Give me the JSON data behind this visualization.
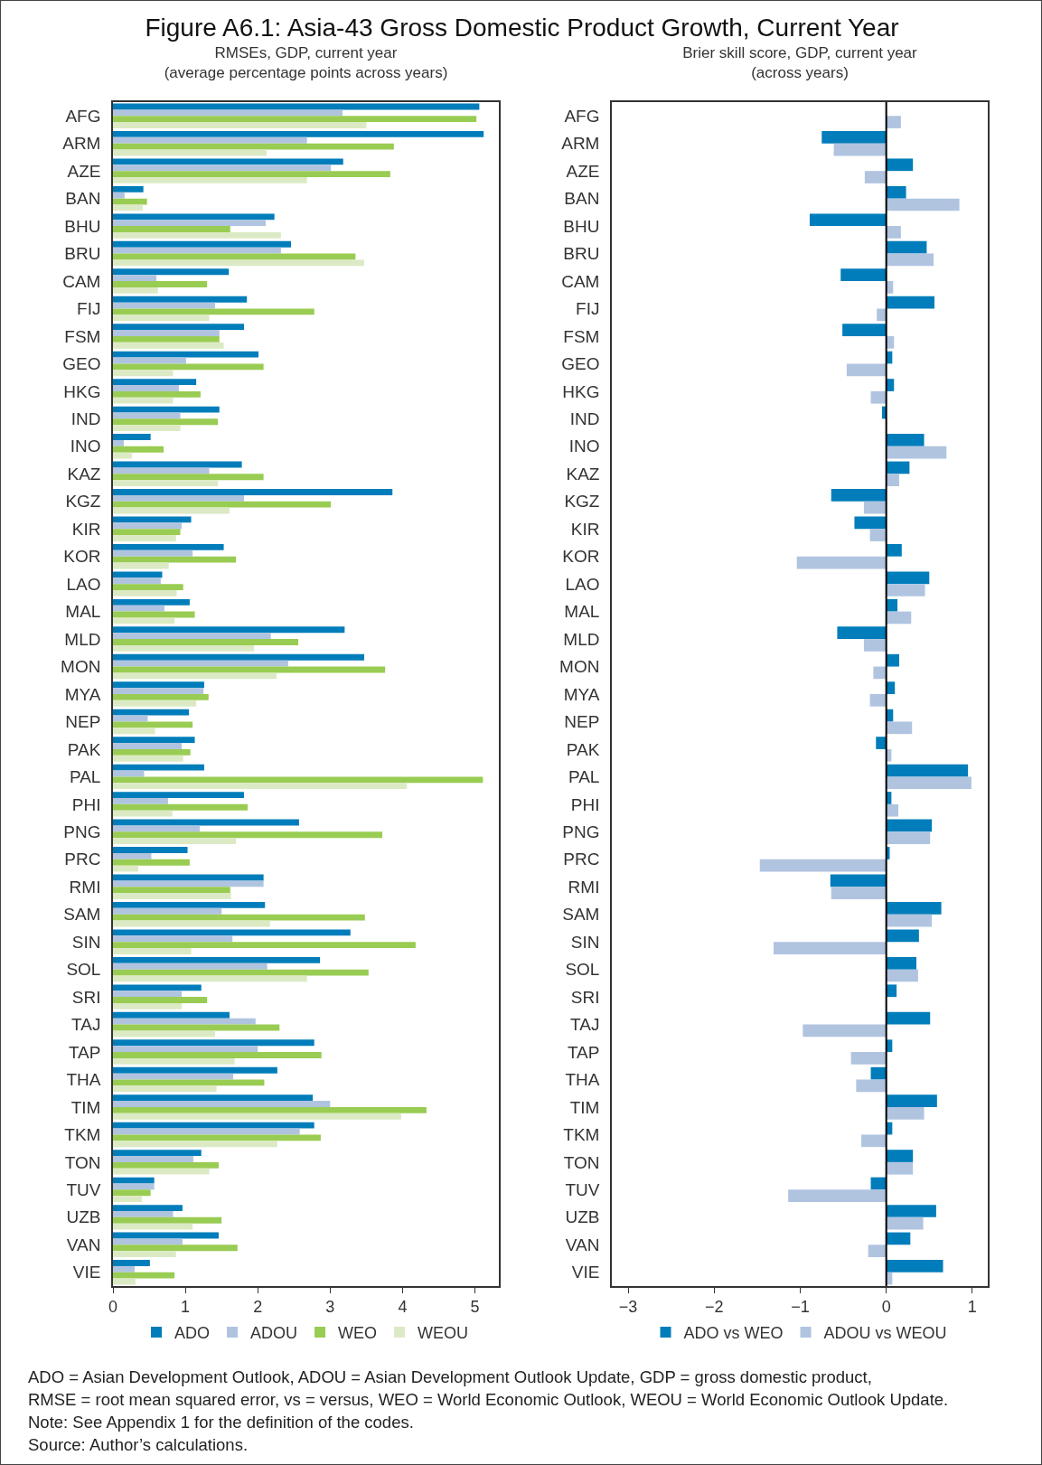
{
  "chart_data": [
    {
      "type": "bar",
      "orientation": "horizontal",
      "title": "Figure A6.1: Asia-43 Gross Domestic Product Growth, Current Year",
      "subtitle": "RMSEs, GDP, current year\n(average percentage points across years)",
      "categories": [
        "AFG",
        "ARM",
        "AZE",
        "BAN",
        "BHU",
        "BRU",
        "CAM",
        "FIJ",
        "FSM",
        "GEO",
        "HKG",
        "IND",
        "INO",
        "KAZ",
        "KGZ",
        "KIR",
        "KOR",
        "LAO",
        "MAL",
        "MLD",
        "MON",
        "MYA",
        "NEP",
        "PAK",
        "PAL",
        "PHI",
        "PNG",
        "PRC",
        "RMI",
        "SAM",
        "SIN",
        "SOL",
        "SRI",
        "TAJ",
        "TAP",
        "THA",
        "TIM",
        "TKM",
        "TON",
        "TUV",
        "UZB",
        "VAN",
        "VIE"
      ],
      "series": [
        {
          "name": "ADO",
          "color": "#007dba",
          "values": [
            5.06,
            5.12,
            3.18,
            0.42,
            2.23,
            2.46,
            1.6,
            1.85,
            1.81,
            2.01,
            1.15,
            1.47,
            0.52,
            1.78,
            3.86,
            1.08,
            1.53,
            0.68,
            1.06,
            3.2,
            3.47,
            1.26,
            1.05,
            1.13,
            1.26,
            1.81,
            2.57,
            1.03,
            2.08,
            2.1,
            3.28,
            2.86,
            1.22,
            1.61,
            2.78,
            2.27,
            2.76,
            2.78,
            1.22,
            0.57,
            0.96,
            1.46,
            0.51
          ]
        },
        {
          "name": "ADOU",
          "color": "#b0c4e0",
          "values": [
            3.17,
            2.68,
            3.01,
            0.16,
            2.11,
            2.32,
            0.6,
            1.41,
            1.47,
            1.01,
            0.91,
            0.93,
            0.15,
            1.33,
            1.81,
            0.95,
            1.1,
            0.66,
            0.71,
            2.18,
            2.42,
            1.25,
            0.48,
            0.95,
            0.43,
            0.76,
            1.2,
            0.53,
            2.08,
            1.5,
            1.65,
            2.13,
            0.95,
            1.97,
            2.0,
            1.66,
            3.0,
            2.58,
            1.11,
            0.57,
            0.83,
            0.96,
            0.3
          ]
        },
        {
          "name": "WEO",
          "color": "#99cc52",
          "values": [
            5.02,
            3.88,
            3.83,
            0.47,
            1.62,
            3.35,
            1.3,
            2.78,
            1.47,
            2.08,
            1.21,
            1.45,
            0.7,
            2.08,
            3.01,
            0.93,
            1.7,
            0.97,
            1.13,
            2.56,
            3.76,
            1.32,
            1.1,
            1.07,
            5.11,
            1.86,
            3.72,
            1.06,
            1.62,
            3.48,
            4.18,
            3.53,
            1.3,
            2.3,
            2.88,
            2.09,
            4.33,
            2.87,
            1.46,
            0.52,
            1.5,
            1.72,
            0.85
          ]
        },
        {
          "name": "WEOU",
          "color": "#dbeac4",
          "values": [
            3.5,
            2.12,
            2.68,
            0.41,
            2.32,
            3.47,
            0.62,
            1.33,
            1.53,
            0.83,
            0.83,
            0.93,
            0.26,
            1.45,
            1.61,
            0.87,
            0.77,
            0.88,
            0.85,
            1.95,
            2.26,
            1.15,
            0.58,
            0.97,
            4.06,
            0.82,
            1.7,
            0.35,
            1.63,
            2.17,
            1.08,
            2.68,
            0.95,
            1.41,
            1.68,
            1.43,
            3.98,
            2.27,
            1.33,
            0.4,
            1.1,
            0.87,
            0.31
          ]
        }
      ],
      "xlim": [
        0,
        5.33
      ],
      "xticks": [
        0,
        1,
        2,
        3,
        4,
        5
      ],
      "grid": false,
      "legend": "bottom"
    },
    {
      "type": "bar",
      "orientation": "horizontal",
      "subtitle": "Brier skill score, GDP, current year\n(across years)",
      "categories": [
        "AFG",
        "ARM",
        "AZE",
        "BAN",
        "BHU",
        "BRU",
        "CAM",
        "FIJ",
        "FSM",
        "GEO",
        "HKG",
        "IND",
        "INO",
        "KAZ",
        "KGZ",
        "KIR",
        "KOR",
        "LAO",
        "MAL",
        "MLD",
        "MON",
        "MYA",
        "NEP",
        "PAK",
        "PAL",
        "PHI",
        "PNG",
        "PRC",
        "RMI",
        "SAM",
        "SIN",
        "SOL",
        "SRI",
        "TAJ",
        "TAP",
        "THA",
        "TIM",
        "TKM",
        "TON",
        "TUV",
        "UZB",
        "VAN",
        "VIE"
      ],
      "series": [
        {
          "name": "ADO vs WEO",
          "color": "#007dba",
          "values": [
            null,
            -0.75,
            0.31,
            0.23,
            -0.89,
            0.47,
            -0.53,
            0.56,
            -0.51,
            0.07,
            0.09,
            -0.05,
            0.44,
            0.27,
            -0.64,
            -0.37,
            0.18,
            0.5,
            0.13,
            -0.57,
            0.15,
            0.1,
            0.08,
            -0.12,
            0.95,
            0.06,
            0.53,
            0.04,
            -0.65,
            0.64,
            0.38,
            0.35,
            0.12,
            0.51,
            0.07,
            -0.18,
            0.59,
            0.07,
            0.31,
            -0.18,
            0.58,
            0.28,
            0.66
          ]
        },
        {
          "name": "ADOU vs WEOU",
          "color": "#b0c4e0",
          "values": [
            0.17,
            -0.61,
            -0.25,
            0.85,
            0.17,
            0.55,
            0.08,
            -0.11,
            0.09,
            -0.46,
            -0.18,
            null,
            0.7,
            0.15,
            -0.26,
            -0.19,
            -1.04,
            0.45,
            0.29,
            -0.26,
            -0.15,
            -0.19,
            0.3,
            0.06,
            0.99,
            0.14,
            0.51,
            -1.47,
            -0.64,
            0.53,
            -1.31,
            0.37,
            null,
            -0.97,
            -0.41,
            -0.35,
            0.44,
            -0.29,
            0.31,
            -1.14,
            0.43,
            -0.21,
            0.07
          ]
        }
      ],
      "xlim": [
        -3.19,
        1.18
      ],
      "xticks": [
        {
          "value": -3,
          "label": "−3"
        },
        {
          "value": -2,
          "label": "−2"
        },
        {
          "value": -1,
          "label": "−1"
        },
        0,
        1
      ],
      "ref_lines": [
        {
          "axis": "x",
          "value": 0,
          "color": "#000000"
        }
      ],
      "grid": false,
      "legend": "bottom",
      "annotations": [
        "ADO = Asian Development Outlook, ADOU = Asian Development Outlook Update, GDP = gross domestic product,",
        "RMSE = root mean squared error, vs = versus, WEO = World Economic Outlook, WEOU = World Economic Outlook Update.",
        "Note: See Appendix 1 for the definition of the codes.",
        "Source: Author’s calculations."
      ]
    }
  ]
}
